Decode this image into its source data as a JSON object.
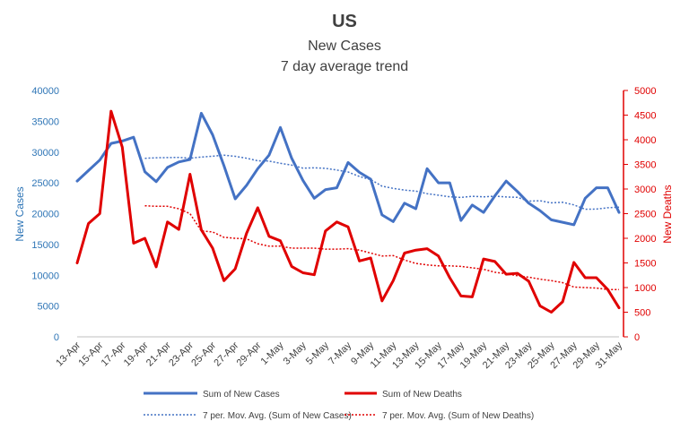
{
  "chart_data": {
    "type": "line",
    "title": "US",
    "subtitle_1": "New Cases",
    "subtitle_2": "7 day average trend",
    "ylabel_left": "New Cases",
    "ylabel_right": "New Deaths",
    "ylim_left": [
      0,
      40000
    ],
    "ylim_right": [
      0,
      5000
    ],
    "yticks_left": [
      "0",
      "5000",
      "10000",
      "15000",
      "20000",
      "25000",
      "30000",
      "35000",
      "40000"
    ],
    "yticks_right": [
      "0",
      "500",
      "1000",
      "1500",
      "2000",
      "2500",
      "3000",
      "3500",
      "4000",
      "4500",
      "5000"
    ],
    "x_tick_labels": [
      "13-Apr",
      "15-Apr",
      "17-Apr",
      "19-Apr",
      "21-Apr",
      "23-Apr",
      "25-Apr",
      "27-Apr",
      "29-Apr",
      "1-May",
      "3-May",
      "5-May",
      "7-May",
      "9-May",
      "11-May",
      "13-May",
      "15-May",
      "17-May",
      "19-May",
      "21-May",
      "23-May",
      "25-May",
      "27-May",
      "29-May",
      "31-May"
    ],
    "dates": [
      "13-Apr",
      "14-Apr",
      "15-Apr",
      "16-Apr",
      "17-Apr",
      "18-Apr",
      "19-Apr",
      "20-Apr",
      "21-Apr",
      "22-Apr",
      "23-Apr",
      "24-Apr",
      "25-Apr",
      "26-Apr",
      "27-Apr",
      "28-Apr",
      "29-Apr",
      "30-Apr",
      "1-May",
      "2-May",
      "3-May",
      "4-May",
      "5-May",
      "6-May",
      "7-May",
      "8-May",
      "9-May",
      "10-May",
      "11-May",
      "12-May",
      "13-May",
      "14-May",
      "15-May",
      "16-May",
      "17-May",
      "18-May",
      "19-May",
      "20-May",
      "21-May",
      "22-May",
      "23-May",
      "24-May",
      "25-May",
      "26-May",
      "27-May",
      "28-May",
      "29-May",
      "30-May",
      "31-May"
    ],
    "grid": false,
    "legend_position": "bottom",
    "colors": {
      "cases": "#4472c4",
      "deaths": "#e00000",
      "axis_left": "#2e75b6",
      "axis_right": "#e00000",
      "title": "#404040"
    },
    "series": [
      {
        "name": "Sum of New Cases",
        "axis": "left",
        "style": "solid",
        "values": [
          25300,
          27000,
          28700,
          31400,
          31800,
          32400,
          26800,
          25200,
          27500,
          28400,
          28800,
          36300,
          32800,
          27800,
          22400,
          24600,
          27300,
          29500,
          34000,
          29000,
          25400,
          22500,
          23900,
          24200,
          28300,
          26700,
          25600,
          19800,
          18700,
          21700,
          20800,
          27300,
          25000,
          25000,
          18900,
          21400,
          20200,
          22900,
          25300,
          23600,
          21700,
          20500,
          19000,
          18600,
          18200,
          22500,
          24200,
          24200,
          20200
        ]
      },
      {
        "name": "Sum of New Deaths",
        "axis": "right",
        "style": "solid",
        "values": [
          1500,
          2300,
          2500,
          4580,
          3850,
          1900,
          2000,
          1420,
          2330,
          2180,
          3300,
          2170,
          1800,
          1140,
          1380,
          2100,
          2620,
          2040,
          1950,
          1430,
          1300,
          1260,
          2150,
          2330,
          2230,
          1540,
          1600,
          730,
          1140,
          1700,
          1760,
          1790,
          1640,
          1200,
          830,
          810,
          1580,
          1530,
          1270,
          1290,
          1130,
          630,
          500,
          710,
          1510,
          1200,
          1200,
          960,
          590
        ]
      },
      {
        "name": "7 per. Mov. Avg. (Sum of New Cases)",
        "axis": "left",
        "style": "dotted",
        "values": [
          null,
          null,
          null,
          null,
          null,
          null,
          28990,
          29070,
          29110,
          29140,
          29010,
          29200,
          29330,
          29500,
          29310,
          29000,
          28580,
          28540,
          28170,
          27880,
          27390,
          27450,
          27360,
          27090,
          26760,
          26040,
          25530,
          24470,
          24100,
          23820,
          23670,
          23240,
          23000,
          22730,
          22630,
          22820,
          22730,
          22850,
          22710,
          22650,
          22040,
          22100,
          21760,
          21840,
          21430,
          20710,
          20740,
          20960,
          21050
        ]
      },
      {
        "name": "7 per. Mov. Avg. (Sum of New Deaths)",
        "axis": "right",
        "style": "dotted",
        "values": [
          null,
          null,
          null,
          null,
          null,
          null,
          2660,
          2650,
          2650,
          2600,
          2500,
          2150,
          2130,
          2020,
          2000,
          1990,
          1890,
          1840,
          1840,
          1800,
          1800,
          1800,
          1780,
          1780,
          1790,
          1760,
          1700,
          1640,
          1650,
          1560,
          1490,
          1460,
          1440,
          1440,
          1430,
          1400,
          1370,
          1310,
          1280,
          1240,
          1210,
          1170,
          1140,
          1100,
          1010,
          1000,
          990,
          960,
          960
        ]
      }
    ]
  }
}
